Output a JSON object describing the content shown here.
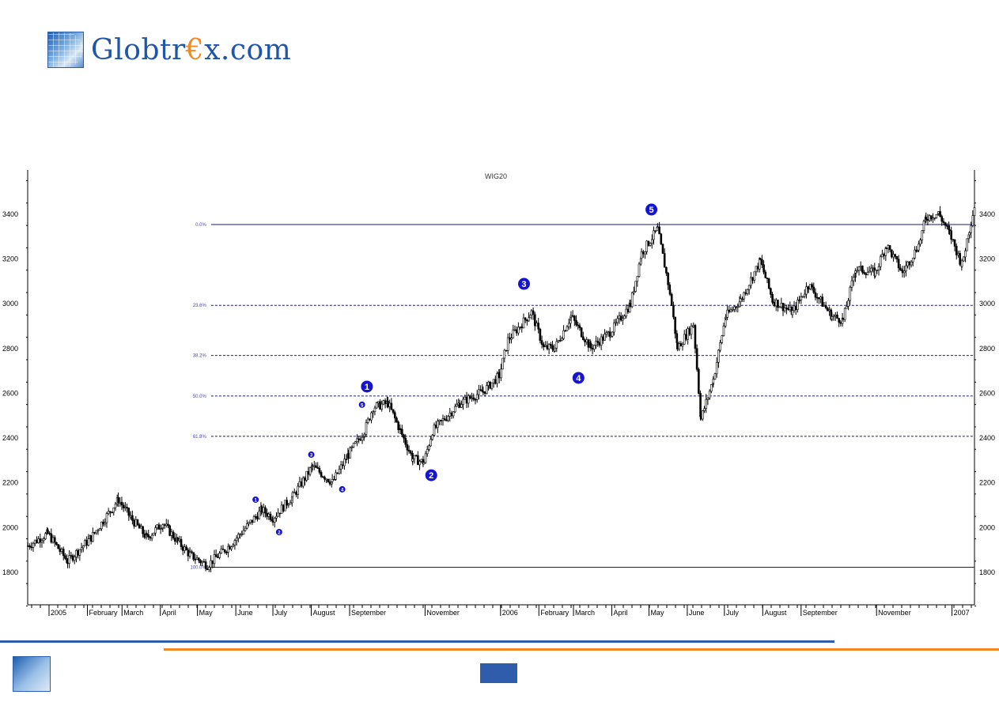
{
  "brand": {
    "name_pre": "Globtr",
    "name_euro": "€",
    "name_post": "x.com"
  },
  "colors": {
    "brand_blue": "#1f56a8",
    "brand_orange": "#f08a24",
    "fib_line": "#1a1a7a",
    "wave_label": "#1515d0",
    "bars": "#000000"
  },
  "chart_data": {
    "type": "candlestick",
    "title": "WIG20",
    "ylim": [
      1650,
      3560
    ],
    "yticks": [
      1800,
      2000,
      2200,
      2400,
      2600,
      2800,
      3000,
      3200,
      3400
    ],
    "xlim": [
      "2004-12-14",
      "2007-01-20"
    ],
    "xtick_labels": [
      {
        "date": "2005-01-01",
        "label": "2005"
      },
      {
        "date": "2005-02-01",
        "label": "February"
      },
      {
        "date": "2005-03-01",
        "label": "March"
      },
      {
        "date": "2005-04-01",
        "label": "April"
      },
      {
        "date": "2005-05-01",
        "label": "May"
      },
      {
        "date": "2005-06-01",
        "label": "June"
      },
      {
        "date": "2005-07-01",
        "label": "July"
      },
      {
        "date": "2005-08-01",
        "label": "August"
      },
      {
        "date": "2005-09-01",
        "label": "September"
      },
      {
        "date": "2005-11-01",
        "label": "November"
      },
      {
        "date": "2006-01-01",
        "label": "2006"
      },
      {
        "date": "2006-02-01",
        "label": "February"
      },
      {
        "date": "2006-03-01",
        "label": "March"
      },
      {
        "date": "2006-04-01",
        "label": "April"
      },
      {
        "date": "2006-05-01",
        "label": "May"
      },
      {
        "date": "2006-06-01",
        "label": "June"
      },
      {
        "date": "2006-07-01",
        "label": "July"
      },
      {
        "date": "2006-08-01",
        "label": "August"
      },
      {
        "date": "2006-09-01",
        "label": "September"
      },
      {
        "date": "2006-11-01",
        "label": "November"
      },
      {
        "date": "2007-01-01",
        "label": "2007"
      }
    ],
    "price_path": [
      [
        "2004-12-15",
        1919
      ],
      [
        "2004-12-31",
        1973
      ],
      [
        "2005-01-16",
        1849
      ],
      [
        "2005-02-04",
        1955
      ],
      [
        "2005-02-26",
        2125
      ],
      [
        "2005-03-08",
        2044
      ],
      [
        "2005-03-21",
        1955
      ],
      [
        "2005-04-03",
        2019
      ],
      [
        "2005-04-15",
        1938
      ],
      [
        "2005-04-25",
        1878
      ],
      [
        "2005-05-09",
        1832
      ],
      [
        "2005-05-27",
        1920
      ],
      [
        "2005-06-22",
        2079
      ],
      [
        "2005-07-01",
        2044
      ],
      [
        "2005-07-17",
        2139
      ],
      [
        "2005-08-02",
        2273
      ],
      [
        "2005-08-18",
        2202
      ],
      [
        "2005-08-31",
        2326
      ],
      [
        "2005-09-13",
        2432
      ],
      [
        "2005-09-20",
        2538
      ],
      [
        "2005-10-02",
        2556
      ],
      [
        "2005-10-12",
        2432
      ],
      [
        "2005-10-22",
        2308
      ],
      [
        "2005-10-31",
        2291
      ],
      [
        "2005-11-07",
        2432
      ],
      [
        "2005-11-29",
        2556
      ],
      [
        "2005-12-18",
        2609
      ],
      [
        "2005-12-31",
        2679
      ],
      [
        "2006-01-07",
        2838
      ],
      [
        "2006-01-26",
        2962
      ],
      [
        "2006-02-05",
        2803
      ],
      [
        "2006-02-14",
        2803
      ],
      [
        "2006-02-27",
        2944
      ],
      [
        "2006-03-15",
        2803
      ],
      [
        "2006-03-31",
        2874
      ],
      [
        "2006-04-16",
        2997
      ],
      [
        "2006-04-25",
        3227
      ],
      [
        "2006-05-08",
        3333
      ],
      [
        "2006-05-18",
        3050
      ],
      [
        "2006-05-24",
        2803
      ],
      [
        "2006-06-06",
        2909
      ],
      [
        "2006-06-12",
        2485
      ],
      [
        "2006-06-22",
        2662
      ],
      [
        "2006-07-02",
        2944
      ],
      [
        "2006-07-14",
        3015
      ],
      [
        "2006-07-30",
        3192
      ],
      [
        "2006-08-09",
        3015
      ],
      [
        "2006-08-25",
        2962
      ],
      [
        "2006-09-07",
        3086
      ],
      [
        "2006-09-26",
        2944
      ],
      [
        "2006-10-05",
        2927
      ],
      [
        "2006-10-15",
        3156
      ],
      [
        "2006-10-31",
        3139
      ],
      [
        "2006-11-09",
        3262
      ],
      [
        "2006-11-22",
        3139
      ],
      [
        "2006-12-05",
        3262
      ],
      [
        "2006-12-11",
        3386
      ],
      [
        "2006-12-21",
        3404
      ],
      [
        "2006-12-30",
        3315
      ],
      [
        "2007-01-09",
        3174
      ],
      [
        "2007-01-15",
        3333
      ],
      [
        "2007-01-20",
        3457
      ]
    ],
    "fibonacci": {
      "start_date": "2005-05-12",
      "levels": [
        {
          "label": "0.0%",
          "value": 3354,
          "style": "solid"
        },
        {
          "label": "23.6%",
          "value": 2993,
          "style": "dashed"
        },
        {
          "label": "38.2%",
          "value": 2769,
          "style": "dashed"
        },
        {
          "label": "50.0%",
          "value": 2588,
          "style": "dashed"
        },
        {
          "label": "61.8%",
          "value": 2408,
          "style": "dashed"
        },
        {
          "label": "100.0%",
          "value": 1823,
          "style": "solid"
        }
      ]
    },
    "wave_labels": [
      {
        "label": "1",
        "date": "2005-06-17",
        "value": 2125,
        "size": "small"
      },
      {
        "label": "2",
        "date": "2005-07-06",
        "value": 1980,
        "size": "small"
      },
      {
        "label": "3",
        "date": "2005-08-01",
        "value": 2326,
        "size": "small"
      },
      {
        "label": "4",
        "date": "2005-08-26",
        "value": 2171,
        "size": "small"
      },
      {
        "label": "5",
        "date": "2005-09-11",
        "value": 2549,
        "size": "small"
      },
      {
        "label": "1",
        "date": "2005-09-15",
        "value": 2630,
        "size": "large"
      },
      {
        "label": "2",
        "date": "2005-11-06",
        "value": 2234,
        "size": "large"
      },
      {
        "label": "3",
        "date": "2006-01-20",
        "value": 3089,
        "size": "large"
      },
      {
        "label": "4",
        "date": "2006-03-05",
        "value": 2669,
        "size": "large"
      },
      {
        "label": "5",
        "date": "2006-05-03",
        "value": 3421,
        "size": "large"
      }
    ]
  }
}
